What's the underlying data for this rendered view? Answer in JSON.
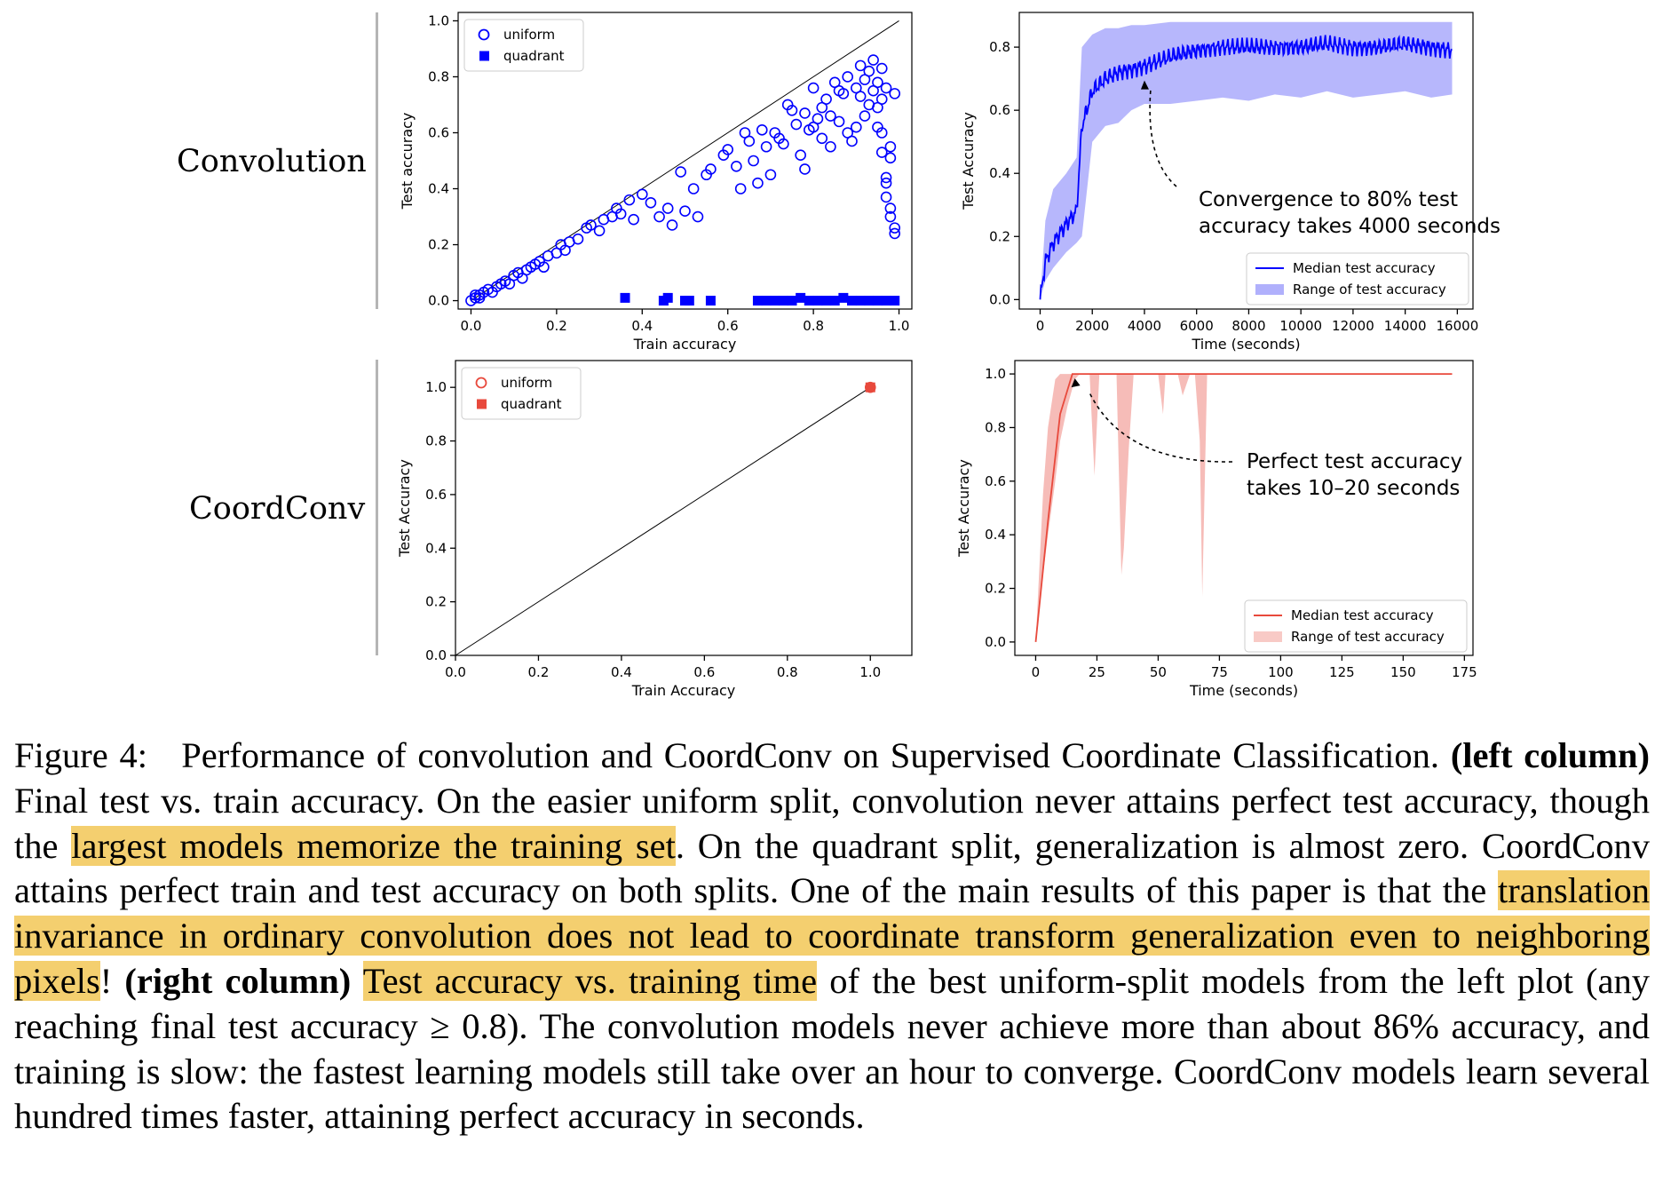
{
  "row_labels": {
    "top": "Convolution",
    "bottom": "CoordConv"
  },
  "colors": {
    "blue": "#0000ff",
    "blue_band": "#7b7bfa",
    "red": "#e8493c",
    "red_band": "#f3a6a0",
    "highlight": "#f4cf6f"
  },
  "chart_data": [
    {
      "type": "scatter",
      "xlabel": "Train accuracy",
      "ylabel": "Test accuracy",
      "xlim": [
        -0.03,
        1.03
      ],
      "ylim": [
        -0.03,
        1.03
      ],
      "xticks": [
        "0.0",
        "0.2",
        "0.4",
        "0.6",
        "0.8",
        "1.0"
      ],
      "yticks": [
        "0.0",
        "0.2",
        "0.4",
        "0.6",
        "0.8",
        "1.0"
      ],
      "diagonal": true,
      "legend": "top-left",
      "series": [
        {
          "name": "uniform",
          "marker": "circle-open",
          "color": "#0000ff",
          "points": [
            [
              0.0,
              0.0
            ],
            [
              0.01,
              0.01
            ],
            [
              0.01,
              0.02
            ],
            [
              0.02,
              0.01
            ],
            [
              0.02,
              0.02
            ],
            [
              0.03,
              0.03
            ],
            [
              0.04,
              0.04
            ],
            [
              0.05,
              0.03
            ],
            [
              0.06,
              0.05
            ],
            [
              0.07,
              0.06
            ],
            [
              0.08,
              0.07
            ],
            [
              0.09,
              0.06
            ],
            [
              0.1,
              0.09
            ],
            [
              0.11,
              0.1
            ],
            [
              0.12,
              0.08
            ],
            [
              0.13,
              0.11
            ],
            [
              0.14,
              0.12
            ],
            [
              0.15,
              0.13
            ],
            [
              0.16,
              0.14
            ],
            [
              0.17,
              0.12
            ],
            [
              0.18,
              0.16
            ],
            [
              0.2,
              0.17
            ],
            [
              0.21,
              0.2
            ],
            [
              0.22,
              0.18
            ],
            [
              0.23,
              0.21
            ],
            [
              0.25,
              0.22
            ],
            [
              0.27,
              0.26
            ],
            [
              0.28,
              0.27
            ],
            [
              0.3,
              0.25
            ],
            [
              0.31,
              0.29
            ],
            [
              0.33,
              0.3
            ],
            [
              0.34,
              0.33
            ],
            [
              0.35,
              0.31
            ],
            [
              0.37,
              0.36
            ],
            [
              0.38,
              0.29
            ],
            [
              0.4,
              0.38
            ],
            [
              0.42,
              0.35
            ],
            [
              0.44,
              0.3
            ],
            [
              0.46,
              0.33
            ],
            [
              0.47,
              0.27
            ],
            [
              0.49,
              0.46
            ],
            [
              0.5,
              0.32
            ],
            [
              0.52,
              0.4
            ],
            [
              0.53,
              0.3
            ],
            [
              0.55,
              0.45
            ],
            [
              0.56,
              0.47
            ],
            [
              0.59,
              0.52
            ],
            [
              0.6,
              0.54
            ],
            [
              0.62,
              0.48
            ],
            [
              0.63,
              0.4
            ],
            [
              0.64,
              0.6
            ],
            [
              0.65,
              0.57
            ],
            [
              0.66,
              0.5
            ],
            [
              0.67,
              0.42
            ],
            [
              0.68,
              0.61
            ],
            [
              0.69,
              0.55
            ],
            [
              0.7,
              0.45
            ],
            [
              0.71,
              0.6
            ],
            [
              0.72,
              0.58
            ],
            [
              0.73,
              0.56
            ],
            [
              0.74,
              0.7
            ],
            [
              0.75,
              0.68
            ],
            [
              0.76,
              0.63
            ],
            [
              0.77,
              0.52
            ],
            [
              0.78,
              0.47
            ],
            [
              0.78,
              0.67
            ],
            [
              0.79,
              0.61
            ],
            [
              0.8,
              0.62
            ],
            [
              0.8,
              0.76
            ],
            [
              0.81,
              0.65
            ],
            [
              0.82,
              0.69
            ],
            [
              0.82,
              0.58
            ],
            [
              0.83,
              0.72
            ],
            [
              0.84,
              0.66
            ],
            [
              0.84,
              0.55
            ],
            [
              0.85,
              0.78
            ],
            [
              0.86,
              0.64
            ],
            [
              0.86,
              0.75
            ],
            [
              0.87,
              0.74
            ],
            [
              0.88,
              0.6
            ],
            [
              0.88,
              0.8
            ],
            [
              0.89,
              0.57
            ],
            [
              0.9,
              0.76
            ],
            [
              0.9,
              0.62
            ],
            [
              0.91,
              0.73
            ],
            [
              0.91,
              0.84
            ],
            [
              0.92,
              0.66
            ],
            [
              0.92,
              0.79
            ],
            [
              0.93,
              0.82
            ],
            [
              0.93,
              0.7
            ],
            [
              0.94,
              0.75
            ],
            [
              0.94,
              0.86
            ],
            [
              0.95,
              0.78
            ],
            [
              0.95,
              0.62
            ],
            [
              0.96,
              0.83
            ],
            [
              0.96,
              0.72
            ],
            [
              0.97,
              0.76
            ],
            [
              0.97,
              0.44
            ],
            [
              0.97,
              0.37
            ],
            [
              0.98,
              0.33
            ],
            [
              0.98,
              0.3
            ],
            [
              0.99,
              0.26
            ],
            [
              0.99,
              0.24
            ],
            [
              0.96,
              0.53
            ],
            [
              0.97,
              0.42
            ],
            [
              0.98,
              0.51
            ],
            [
              0.95,
              0.69
            ],
            [
              0.96,
              0.6
            ],
            [
              0.98,
              0.55
            ],
            [
              0.99,
              0.74
            ]
          ]
        },
        {
          "name": "quadrant",
          "marker": "square-filled",
          "color": "#0000ff",
          "points": [
            [
              0.36,
              0.01
            ],
            [
              0.45,
              0.0
            ],
            [
              0.46,
              0.01
            ],
            [
              0.5,
              0.0
            ],
            [
              0.51,
              0.0
            ],
            [
              0.56,
              0.0
            ],
            [
              0.67,
              0.0
            ],
            [
              0.69,
              0.0
            ],
            [
              0.71,
              0.0
            ],
            [
              0.73,
              0.0
            ],
            [
              0.75,
              0.0
            ],
            [
              0.77,
              0.01
            ],
            [
              0.79,
              0.0
            ],
            [
              0.81,
              0.0
            ],
            [
              0.83,
              0.0
            ],
            [
              0.85,
              0.0
            ],
            [
              0.87,
              0.01
            ],
            [
              0.89,
              0.0
            ],
            [
              0.91,
              0.0
            ],
            [
              0.93,
              0.0
            ],
            [
              0.95,
              0.0
            ],
            [
              0.97,
              0.0
            ],
            [
              0.99,
              0.0
            ]
          ]
        }
      ]
    },
    {
      "type": "line",
      "xlabel": "Time (seconds)",
      "ylabel": "Test Accuracy",
      "xlim": [
        -800,
        16600
      ],
      "ylim": [
        -0.03,
        0.91
      ],
      "xticks": [
        "0",
        "2000",
        "4000",
        "6000",
        "8000",
        "10000",
        "12000",
        "14000",
        "16000"
      ],
      "yticks": [
        "0.0",
        "0.2",
        "0.4",
        "0.6",
        "0.8"
      ],
      "legend": "bottom-right",
      "annotation": {
        "text": [
          "Convergence to 80% test",
          "accuracy takes 4000 seconds"
        ],
        "target": [
          4000,
          0.7
        ]
      },
      "series": [
        {
          "name": "Median test accuracy",
          "color": "#0000ff",
          "x": [
            0,
            200,
            500,
            1000,
            1400,
            1600,
            2000,
            2500,
            3000,
            3500,
            4000,
            5000,
            6000,
            7000,
            8000,
            9000,
            10000,
            11000,
            12000,
            13000,
            14000,
            15000,
            15800
          ],
          "y": [
            0.0,
            0.12,
            0.18,
            0.24,
            0.28,
            0.55,
            0.66,
            0.7,
            0.72,
            0.73,
            0.74,
            0.77,
            0.79,
            0.8,
            0.8,
            0.8,
            0.8,
            0.81,
            0.8,
            0.8,
            0.81,
            0.8,
            0.79
          ]
        },
        {
          "name": "Range of test accuracy",
          "color": "#7b7bfa",
          "x": [
            0,
            200,
            500,
            1000,
            1400,
            1600,
            2000,
            2500,
            3000,
            3500,
            4000,
            5000,
            6000,
            7000,
            8000,
            9000,
            10000,
            11000,
            12000,
            13000,
            14000,
            15000,
            15800
          ],
          "low": [
            0.0,
            0.06,
            0.1,
            0.15,
            0.18,
            0.2,
            0.5,
            0.55,
            0.56,
            0.6,
            0.62,
            0.62,
            0.63,
            0.64,
            0.63,
            0.65,
            0.64,
            0.66,
            0.64,
            0.65,
            0.66,
            0.64,
            0.65
          ],
          "high": [
            0.0,
            0.25,
            0.35,
            0.4,
            0.45,
            0.8,
            0.84,
            0.86,
            0.86,
            0.87,
            0.87,
            0.88,
            0.88,
            0.88,
            0.88,
            0.88,
            0.88,
            0.88,
            0.88,
            0.88,
            0.88,
            0.88,
            0.88
          ]
        }
      ]
    },
    {
      "type": "scatter",
      "xlabel": "Train Accuracy",
      "ylabel": "Test Accuracy",
      "xlim": [
        0.0,
        1.1
      ],
      "ylim": [
        0.0,
        1.1
      ],
      "xticks": [
        "0.0",
        "0.2",
        "0.4",
        "0.6",
        "0.8",
        "1.0"
      ],
      "yticks": [
        "0.0",
        "0.2",
        "0.4",
        "0.6",
        "0.8",
        "1.0"
      ],
      "diagonal": true,
      "legend": "top-left",
      "series": [
        {
          "name": "uniform",
          "marker": "circle-open",
          "color": "#e8493c",
          "points": [
            [
              1.0,
              1.0
            ]
          ]
        },
        {
          "name": "quadrant",
          "marker": "square-filled",
          "color": "#e8493c",
          "points": [
            [
              1.0,
              1.0
            ]
          ]
        }
      ]
    },
    {
      "type": "line",
      "xlabel": "Time (seconds)",
      "ylabel": "Test Accuracy",
      "xlim": [
        -8.5,
        178.5
      ],
      "ylim": [
        -0.05,
        1.05
      ],
      "xticks": [
        "0",
        "25",
        "50",
        "75",
        "100",
        "125",
        "150",
        "175"
      ],
      "yticks": [
        "0.0",
        "0.2",
        "0.4",
        "0.6",
        "0.8",
        "1.0"
      ],
      "legend": "bottom-right",
      "annotation": {
        "text": [
          "Perfect test accuracy",
          "takes 10–20 seconds"
        ],
        "target": [
          16,
          0.99
        ]
      },
      "series": [
        {
          "name": "Median test accuracy",
          "color": "#e8493c",
          "x": [
            0,
            5,
            10,
            15,
            20,
            170
          ],
          "y": [
            0.0,
            0.45,
            0.85,
            1.0,
            1.0,
            1.0
          ]
        },
        {
          "name": "Range of test accuracy",
          "color": "#f3a6a0",
          "x": [
            0,
            3,
            5,
            8,
            10,
            13,
            16,
            18,
            20,
            22,
            24,
            26,
            28,
            30,
            33,
            35,
            36,
            38,
            40,
            42,
            45,
            50,
            52,
            53,
            55,
            58,
            60,
            63,
            65,
            67,
            68,
            70,
            72,
            75,
            170
          ],
          "low": [
            0.0,
            0.25,
            0.4,
            0.6,
            0.75,
            0.88,
            0.98,
            1.0,
            1.0,
            1.0,
            0.62,
            1.0,
            1.0,
            1.0,
            1.0,
            0.25,
            0.35,
            0.72,
            1.0,
            1.0,
            1.0,
            1.0,
            0.85,
            1.0,
            1.0,
            1.0,
            0.92,
            1.0,
            1.0,
            0.75,
            0.17,
            1.0,
            1.0,
            1.0,
            1.0
          ],
          "high": [
            0.0,
            0.55,
            0.8,
            0.98,
            1.0,
            1.0,
            1.0,
            1.0,
            1.0,
            1.0,
            1.0,
            1.0,
            1.0,
            1.0,
            1.0,
            1.0,
            1.0,
            1.0,
            1.0,
            1.0,
            1.0,
            1.0,
            1.0,
            1.0,
            1.0,
            1.0,
            1.0,
            1.0,
            1.0,
            1.0,
            1.0,
            1.0,
            1.0,
            1.0,
            1.0
          ]
        }
      ]
    }
  ],
  "caption": {
    "figure_num": "Figure 4:",
    "title": "Performance of convolution and CoordConv on Supervised Coordinate Classification.",
    "left_label": "(left column)",
    "s1": " Final test vs. train accuracy. On the easier uniform split, convolution never attains perfect test accuracy, though the ",
    "h1": "largest models memorize the training set",
    "s2": ". On the quadrant split, generalization is almost zero. CoordConv attains perfect train and test accuracy on both splits. One of the main results of this paper is that the ",
    "h2": "translation invariance in ordinary convolution does not lead to coordinate transform generalization even to neighboring pixels",
    "s3": "! ",
    "right_label": "(right column)",
    "s4": " ",
    "h3": "Test accuracy vs. training time",
    "s5": " of the best uniform-split models from the left plot (any reaching final test accuracy ≥ 0.8). The convolution models never achieve more than about 86% accuracy, and training is slow: the fastest learning models still take over an hour to converge. CoordConv models learn several hundred times faster, attaining perfect accuracy in seconds."
  }
}
